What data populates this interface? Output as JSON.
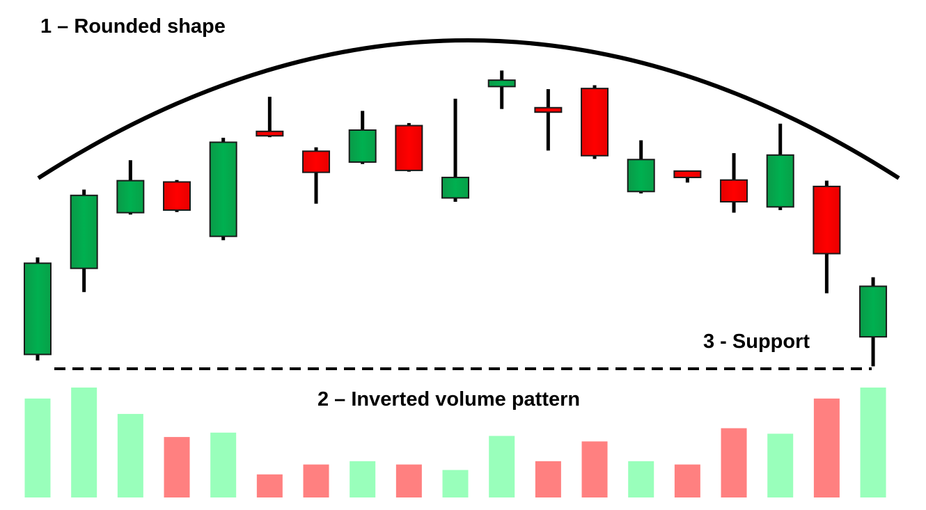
{
  "annotations": {
    "rounded_shape": "1 – Rounded shape",
    "volume_pattern": "2 – Inverted volume pattern",
    "support": "3 - Support"
  },
  "chart_data": {
    "type": "candlestick",
    "title": "",
    "xlabel": "",
    "ylabel": "",
    "grid": false,
    "legend": "none",
    "colors": {
      "up": "#00b050",
      "down": "#ff0000",
      "up_volume": "#99ffbb",
      "down_volume": "#ff8080",
      "wick": "#000000",
      "arc": "#000000"
    },
    "price_range": [
      0,
      100
    ],
    "volume_range": [
      0,
      100
    ],
    "support_level": 0,
    "candles": [
      {
        "open": 2.3,
        "close": 30.8,
        "high": 32.6,
        "low": 0.4,
        "volume": 90
      },
      {
        "open": 29.2,
        "close": 52.0,
        "high": 53.8,
        "low": 21.8,
        "volume": 100
      },
      {
        "open": 46.6,
        "close": 56.6,
        "high": 63.0,
        "low": 46.0,
        "volume": 76
      },
      {
        "open": 56.2,
        "close": 47.4,
        "high": 56.8,
        "low": 46.8,
        "volume": 55
      },
      {
        "open": 39.2,
        "close": 68.6,
        "high": 70.0,
        "low": 38.0,
        "volume": 59
      },
      {
        "open": 72.0,
        "close": 70.6,
        "high": 82.8,
        "low": 70.2,
        "volume": 21
      },
      {
        "open": 65.8,
        "close": 59.2,
        "high": 67.0,
        "low": 49.4,
        "volume": 30
      },
      {
        "open": 62.4,
        "close": 72.4,
        "high": 78.4,
        "low": 61.8,
        "volume": 33
      },
      {
        "open": 73.8,
        "close": 59.8,
        "high": 74.6,
        "low": 59.4,
        "volume": 30
      },
      {
        "open": 51.2,
        "close": 57.6,
        "high": 82.2,
        "low": 50.0,
        "volume": 25
      },
      {
        "open": 86.0,
        "close": 88.0,
        "high": 91.0,
        "low": 79.0,
        "volume": 56
      },
      {
        "open": 79.4,
        "close": 78.0,
        "high": 85.2,
        "low": 66.0,
        "volume": 33
      },
      {
        "open": 85.4,
        "close": 64.4,
        "high": 86.4,
        "low": 63.4,
        "volume": 51
      },
      {
        "open": 53.2,
        "close": 63.2,
        "high": 69.2,
        "low": 52.6,
        "volume": 33
      },
      {
        "open": 59.6,
        "close": 57.6,
        "high": 59.8,
        "low": 56.0,
        "volume": 30
      },
      {
        "open": 56.8,
        "close": 50.0,
        "high": 65.2,
        "low": 46.6,
        "volume": 63
      },
      {
        "open": 48.4,
        "close": 64.6,
        "high": 74.4,
        "low": 47.4,
        "volume": 58
      },
      {
        "open": 54.8,
        "close": 33.8,
        "high": 56.6,
        "low": 21.4,
        "volume": 90
      },
      {
        "open": 7.8,
        "close": 23.6,
        "high": 26.4,
        "low": -1.4,
        "volume": 100
      }
    ]
  }
}
